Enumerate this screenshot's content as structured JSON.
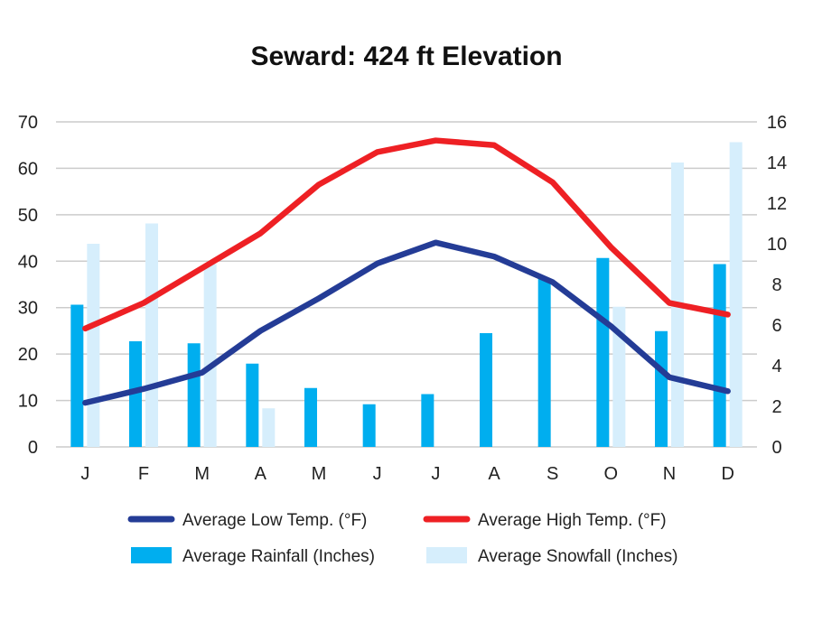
{
  "chart_data": {
    "type": "bar",
    "title": "Seward: 424 ft Elevation",
    "categories": [
      "J",
      "F",
      "M",
      "A",
      "M",
      "J",
      "J",
      "A",
      "S",
      "O",
      "N",
      "D"
    ],
    "left_axis": {
      "range": [
        0,
        70
      ],
      "ticks": [
        0,
        10,
        20,
        30,
        40,
        50,
        60,
        70
      ]
    },
    "right_axis": {
      "range": [
        0,
        16
      ],
      "ticks": [
        0,
        2,
        4,
        6,
        8,
        10,
        12,
        14,
        16
      ]
    },
    "series": [
      {
        "name": "Average Low Temp. (°F)",
        "type": "line",
        "axis": "left",
        "color": "#243c96",
        "values": [
          9.5,
          12.5,
          16,
          25,
          32,
          39.5,
          44,
          41,
          35.5,
          26,
          15,
          12
        ]
      },
      {
        "name": "Average High Temp. (°F)",
        "type": "line",
        "axis": "left",
        "color": "#ee2024",
        "values": [
          25.5,
          31,
          38.5,
          46,
          56.5,
          63.5,
          66,
          65,
          57,
          43,
          31,
          28.5
        ]
      },
      {
        "name": "Average Rainfall (Inches)",
        "type": "bar",
        "axis": "right",
        "color": "#00aeef",
        "values": [
          7.0,
          5.2,
          5.1,
          4.1,
          2.9,
          2.1,
          2.6,
          5.6,
          8.3,
          9.3,
          5.7,
          9.0
        ]
      },
      {
        "name": "Average Snowfall (Inches)",
        "type": "bar",
        "axis": "right",
        "color": "#d6eefc",
        "values": [
          10.0,
          11.0,
          9.0,
          1.9,
          0,
          0,
          0,
          0,
          0,
          6.9,
          14.0,
          15.0
        ]
      }
    ],
    "legend_position": "bottom",
    "grid": true
  }
}
